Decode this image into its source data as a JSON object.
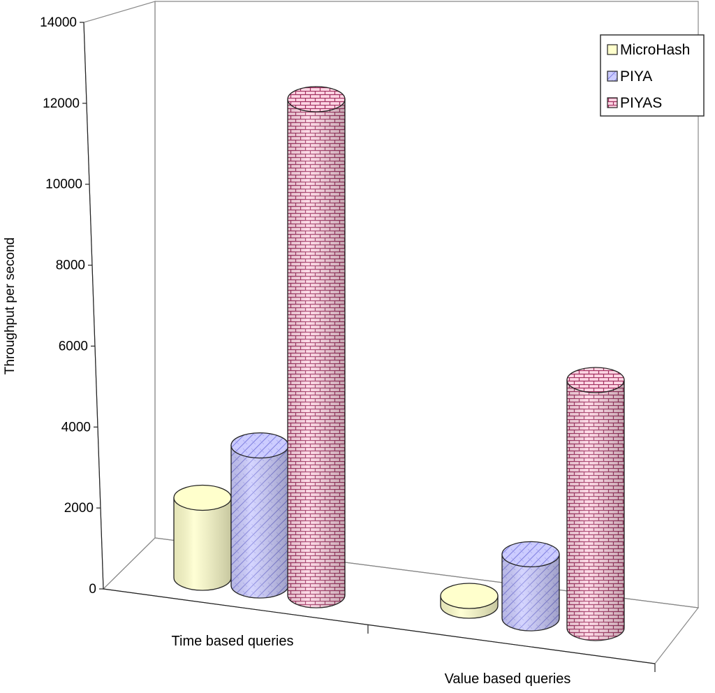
{
  "chart_data": {
    "type": "bar",
    "style": "3d-cylinder",
    "categories": [
      "Time based queries",
      "Value based queries"
    ],
    "ylabel": "Throughput per second",
    "xlabel": "",
    "ylim": [
      0,
      14000
    ],
    "yticks": [
      0,
      2000,
      4000,
      6000,
      8000,
      10000,
      12000,
      14000
    ],
    "legend_position": "top-right",
    "grid": false,
    "series": [
      {
        "name": "MicroHash",
        "values": [
          2000,
          0
        ],
        "color": "#ffffcc",
        "pattern": "plain"
      },
      {
        "name": "PIYA",
        "values": [
          3500,
          1600
        ],
        "color": "#ccccff",
        "pattern": "diagonal-hatch"
      },
      {
        "name": "PIYAS",
        "values": [
          12400,
          6200
        ],
        "color": "#ffccdd",
        "pattern": "brick"
      }
    ]
  }
}
